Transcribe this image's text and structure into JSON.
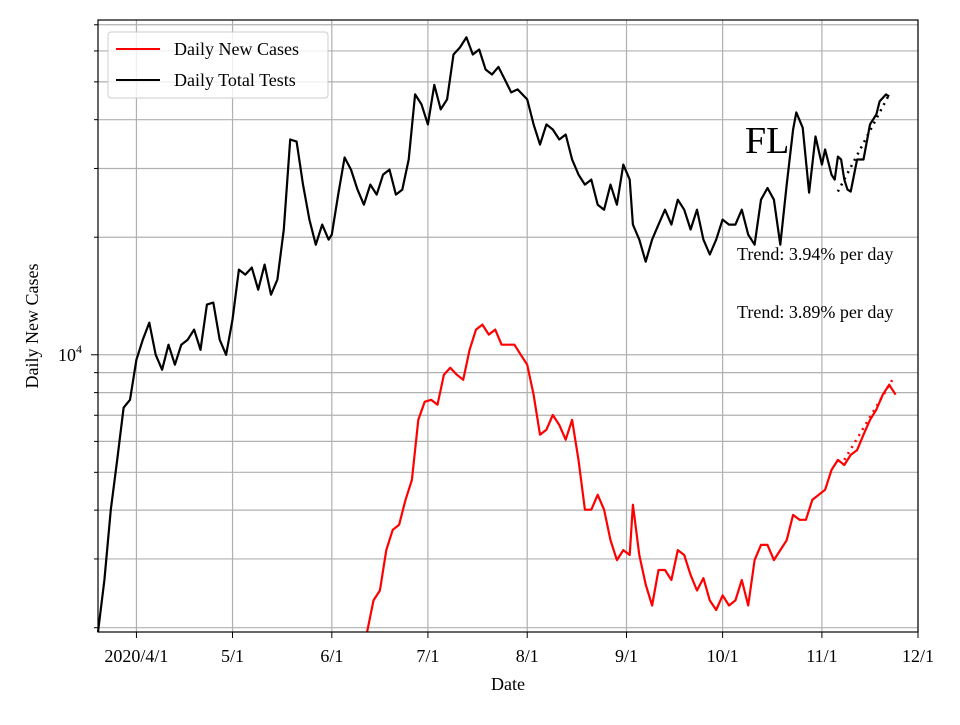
{
  "chart_data": {
    "type": "line",
    "title": "",
    "annotation_title": "FL",
    "xlabel": "Date",
    "ylabel": "Daily New Cases",
    "yscale": "log",
    "ylim": [
      1950,
      72000
    ],
    "xlim": [
      "2020-03-20",
      "2020-12-01"
    ],
    "grid": true,
    "legend_placement": "upper-left",
    "x_ticks": [
      {
        "date": "2020-04-01",
        "label": "2020/4/1"
      },
      {
        "date": "2020-05-01",
        "label": "5/1"
      },
      {
        "date": "2020-06-01",
        "label": "6/1"
      },
      {
        "date": "2020-07-01",
        "label": "7/1"
      },
      {
        "date": "2020-08-01",
        "label": "8/1"
      },
      {
        "date": "2020-09-01",
        "label": "9/1"
      },
      {
        "date": "2020-10-01",
        "label": "10/1"
      },
      {
        "date": "2020-11-01",
        "label": "11/1"
      },
      {
        "date": "2020-12-01",
        "label": "12/1"
      }
    ],
    "y_major_ticks": [
      {
        "value": 10000,
        "base": "10",
        "exp": "4"
      }
    ],
    "annotations": [
      "Trend: 3.94% per day",
      "Trend: 3.89% per day"
    ],
    "series": [
      {
        "name": "Daily New Cases",
        "color": "#ff0000",
        "points": [
          [
            "2020-06-12",
            1950
          ],
          [
            "2020-06-14",
            2350
          ],
          [
            "2020-06-16",
            2490
          ],
          [
            "2020-06-18",
            3160
          ],
          [
            "2020-06-20",
            3560
          ],
          [
            "2020-06-22",
            3670
          ],
          [
            "2020-06-24",
            4250
          ],
          [
            "2020-06-26",
            4780
          ],
          [
            "2020-06-28",
            6810
          ],
          [
            "2020-06-30",
            7580
          ],
          [
            "2020-07-02",
            7670
          ],
          [
            "2020-07-04",
            7450
          ],
          [
            "2020-07-06",
            8890
          ],
          [
            "2020-07-08",
            9260
          ],
          [
            "2020-07-10",
            8890
          ],
          [
            "2020-07-12",
            8630
          ],
          [
            "2020-07-14",
            10300
          ],
          [
            "2020-07-16",
            11600
          ],
          [
            "2020-07-18",
            11950
          ],
          [
            "2020-07-20",
            11260
          ],
          [
            "2020-07-22",
            11600
          ],
          [
            "2020-07-24",
            10610
          ],
          [
            "2020-07-26",
            10610
          ],
          [
            "2020-07-28",
            10610
          ],
          [
            "2020-07-30",
            10000
          ],
          [
            "2020-08-01",
            9430
          ],
          [
            "2020-08-03",
            7900
          ],
          [
            "2020-08-05",
            6240
          ],
          [
            "2020-08-07",
            6430
          ],
          [
            "2020-08-09",
            7010
          ],
          [
            "2020-08-11",
            6610
          ],
          [
            "2020-08-13",
            6060
          ],
          [
            "2020-08-15",
            6810
          ],
          [
            "2020-08-17",
            5380
          ],
          [
            "2020-08-19",
            4010
          ],
          [
            "2020-08-21",
            4010
          ],
          [
            "2020-08-23",
            4380
          ],
          [
            "2020-08-25",
            4010
          ],
          [
            "2020-08-27",
            3350
          ],
          [
            "2020-08-29",
            2980
          ],
          [
            "2020-08-31",
            3160
          ],
          [
            "2020-09-02",
            3070
          ],
          [
            "2020-09-03",
            4130
          ],
          [
            "2020-09-05",
            3070
          ],
          [
            "2020-09-07",
            2580
          ],
          [
            "2020-09-09",
            2280
          ],
          [
            "2020-09-11",
            2810
          ],
          [
            "2020-09-13",
            2810
          ],
          [
            "2020-09-15",
            2650
          ],
          [
            "2020-09-17",
            3160
          ],
          [
            "2020-09-19",
            3070
          ],
          [
            "2020-09-21",
            2730
          ],
          [
            "2020-09-23",
            2490
          ],
          [
            "2020-09-25",
            2680
          ],
          [
            "2020-09-27",
            2350
          ],
          [
            "2020-09-29",
            2220
          ],
          [
            "2020-10-01",
            2420
          ],
          [
            "2020-10-03",
            2280
          ],
          [
            "2020-10-05",
            2350
          ],
          [
            "2020-10-07",
            2650
          ],
          [
            "2020-10-09",
            2280
          ],
          [
            "2020-10-11",
            2980
          ],
          [
            "2020-10-13",
            3260
          ],
          [
            "2020-10-15",
            3260
          ],
          [
            "2020-10-17",
            2980
          ],
          [
            "2020-10-19",
            3160
          ],
          [
            "2020-10-21",
            3350
          ],
          [
            "2020-10-23",
            3890
          ],
          [
            "2020-10-25",
            3780
          ],
          [
            "2020-10-27",
            3780
          ],
          [
            "2020-10-29",
            4250
          ],
          [
            "2020-10-31",
            4380
          ],
          [
            "2020-11-02",
            4510
          ],
          [
            "2020-11-04",
            5070
          ],
          [
            "2020-11-06",
            5380
          ],
          [
            "2020-11-08",
            5220
          ],
          [
            "2020-11-10",
            5540
          ],
          [
            "2020-11-12",
            5700
          ],
          [
            "2020-11-14",
            6240
          ],
          [
            "2020-11-16",
            6810
          ],
          [
            "2020-11-18",
            7240
          ],
          [
            "2020-11-20",
            7900
          ],
          [
            "2020-11-22",
            8380
          ],
          [
            "2020-11-24",
            7900
          ]
        ],
        "trend": [
          [
            "2020-11-08",
            5380
          ],
          [
            "2020-11-23",
            8630
          ]
        ]
      },
      {
        "name": "Daily Total Tests",
        "color": "#000000",
        "points": [
          [
            "2020-03-20",
            1950
          ],
          [
            "2020-03-22",
            2650
          ],
          [
            "2020-03-24",
            4010
          ],
          [
            "2020-03-26",
            5380
          ],
          [
            "2020-03-28",
            7320
          ],
          [
            "2020-03-30",
            7670
          ],
          [
            "2020-04-01",
            9710
          ],
          [
            "2020-04-03",
            10930
          ],
          [
            "2020-04-05",
            12080
          ],
          [
            "2020-04-07",
            10000
          ],
          [
            "2020-04-09",
            9160
          ],
          [
            "2020-04-11",
            10610
          ],
          [
            "2020-04-13",
            9430
          ],
          [
            "2020-04-15",
            10610
          ],
          [
            "2020-04-17",
            10930
          ],
          [
            "2020-04-19",
            11600
          ],
          [
            "2020-04-21",
            10300
          ],
          [
            "2020-04-23",
            13440
          ],
          [
            "2020-04-25",
            13600
          ],
          [
            "2020-04-27",
            10930
          ],
          [
            "2020-04-29",
            10000
          ],
          [
            "2020-05-01",
            12300
          ],
          [
            "2020-05-03",
            16520
          ],
          [
            "2020-05-05",
            16040
          ],
          [
            "2020-05-07",
            16720
          ],
          [
            "2020-05-09",
            14680
          ],
          [
            "2020-05-11",
            17020
          ],
          [
            "2020-05-13",
            14250
          ],
          [
            "2020-05-15",
            15590
          ],
          [
            "2020-05-17",
            20930
          ],
          [
            "2020-05-19",
            35580
          ],
          [
            "2020-05-21",
            35160
          ],
          [
            "2020-05-23",
            27280
          ],
          [
            "2020-05-25",
            22190
          ],
          [
            "2020-05-27",
            19140
          ],
          [
            "2020-05-29",
            21540
          ],
          [
            "2020-05-31",
            19720
          ],
          [
            "2020-06-01",
            20310
          ],
          [
            "2020-06-03",
            25710
          ],
          [
            "2020-06-05",
            32000
          ],
          [
            "2020-06-07",
            29800
          ],
          [
            "2020-06-09",
            26480
          ],
          [
            "2020-06-11",
            24230
          ],
          [
            "2020-06-13",
            27280
          ],
          [
            "2020-06-15",
            25710
          ],
          [
            "2020-06-17",
            28940
          ],
          [
            "2020-06-19",
            29800
          ],
          [
            "2020-06-21",
            25710
          ],
          [
            "2020-06-23",
            26480
          ],
          [
            "2020-06-25",
            31620
          ],
          [
            "2020-06-27",
            46430
          ],
          [
            "2020-06-29",
            43770
          ],
          [
            "2020-07-01",
            38900
          ],
          [
            "2020-07-03",
            49100
          ],
          [
            "2020-07-05",
            42490
          ],
          [
            "2020-07-07",
            45080
          ],
          [
            "2020-07-09",
            58750
          ],
          [
            "2020-07-11",
            61260
          ],
          [
            "2020-07-13",
            65020
          ],
          [
            "2020-07-15",
            58750
          ],
          [
            "2020-07-17",
            60520
          ],
          [
            "2020-07-19",
            53780
          ],
          [
            "2020-07-21",
            52210
          ],
          [
            "2020-07-23",
            54610
          ],
          [
            "2020-07-25",
            50700
          ],
          [
            "2020-07-27",
            46980
          ],
          [
            "2020-07-29",
            47820
          ],
          [
            "2020-08-01",
            45080
          ],
          [
            "2020-08-03",
            38900
          ],
          [
            "2020-08-05",
            34540
          ],
          [
            "2020-08-07",
            38900
          ],
          [
            "2020-08-09",
            37760
          ],
          [
            "2020-08-11",
            35580
          ],
          [
            "2020-08-13",
            36650
          ],
          [
            "2020-08-15",
            31620
          ],
          [
            "2020-08-17",
            28940
          ],
          [
            "2020-08-19",
            27280
          ],
          [
            "2020-08-21",
            28100
          ],
          [
            "2020-08-23",
            24230
          ],
          [
            "2020-08-25",
            23520
          ],
          [
            "2020-08-27",
            27280
          ],
          [
            "2020-08-29",
            24230
          ],
          [
            "2020-08-31",
            30700
          ],
          [
            "2020-09-02",
            28100
          ],
          [
            "2020-09-03",
            21540
          ],
          [
            "2020-09-05",
            19720
          ],
          [
            "2020-09-07",
            17310
          ],
          [
            "2020-09-09",
            19720
          ],
          [
            "2020-09-11",
            21540
          ],
          [
            "2020-09-13",
            23520
          ],
          [
            "2020-09-15",
            21540
          ],
          [
            "2020-09-17",
            24960
          ],
          [
            "2020-09-19",
            23520
          ],
          [
            "2020-09-21",
            20930
          ],
          [
            "2020-09-23",
            23520
          ],
          [
            "2020-09-25",
            19720
          ],
          [
            "2020-09-27",
            18060
          ],
          [
            "2020-09-29",
            19720
          ],
          [
            "2020-10-01",
            22190
          ],
          [
            "2020-10-03",
            21540
          ],
          [
            "2020-10-05",
            21540
          ],
          [
            "2020-10-07",
            23520
          ],
          [
            "2020-10-09",
            20310
          ],
          [
            "2020-10-11",
            19140
          ],
          [
            "2020-10-13",
            24960
          ],
          [
            "2020-10-15",
            26740
          ],
          [
            "2020-10-17",
            24960
          ],
          [
            "2020-10-19",
            19140
          ],
          [
            "2020-10-21",
            27280
          ],
          [
            "2020-10-23",
            37760
          ],
          [
            "2020-10-24",
            41760
          ],
          [
            "2020-10-26",
            38160
          ],
          [
            "2020-10-28",
            26000
          ],
          [
            "2020-10-30",
            36230
          ],
          [
            "2020-11-01",
            30700
          ],
          [
            "2020-11-02",
            33550
          ],
          [
            "2020-11-04",
            28940
          ],
          [
            "2020-11-05",
            28100
          ],
          [
            "2020-11-06",
            32180
          ],
          [
            "2020-11-07",
            31620
          ],
          [
            "2020-11-08",
            28100
          ],
          [
            "2020-11-09",
            26480
          ],
          [
            "2020-11-10",
            26170
          ],
          [
            "2020-11-12",
            31620
          ],
          [
            "2020-11-14",
            31620
          ],
          [
            "2020-11-16",
            38900
          ],
          [
            "2020-11-18",
            41270
          ],
          [
            "2020-11-19",
            44550
          ],
          [
            "2020-11-21",
            46430
          ],
          [
            "2020-11-22",
            45880
          ]
        ],
        "trend": [
          [
            "2020-11-06",
            26170
          ],
          [
            "2020-11-22",
            46430
          ]
        ]
      }
    ]
  }
}
